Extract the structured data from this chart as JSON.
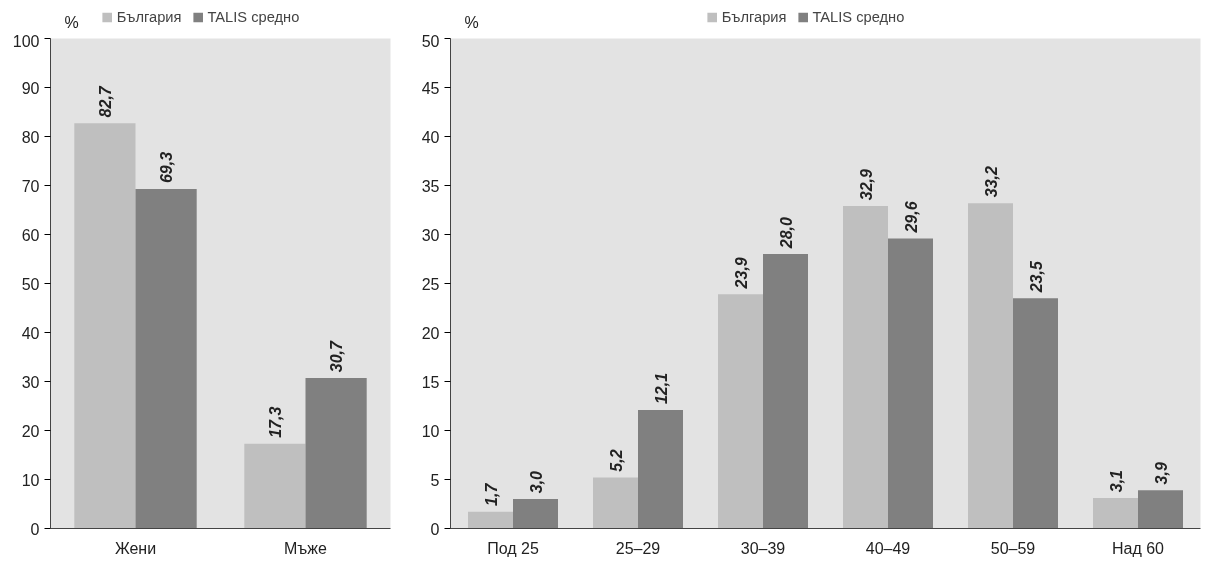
{
  "chart_data": [
    {
      "type": "bar",
      "ylabel": "%",
      "categories": [
        "Жени",
        "Мъже"
      ],
      "ylim": [
        0,
        100
      ],
      "yticks": [
        0,
        10,
        20,
        30,
        40,
        50,
        60,
        70,
        80,
        90,
        100
      ],
      "grid": false,
      "legend": "top",
      "series": [
        {
          "name": "България",
          "color": "#bfbfbf",
          "values": [
            82.7,
            17.3
          ],
          "value_labels": [
            "82,7",
            "17,3"
          ]
        },
        {
          "name": "TALIS средно",
          "color": "#808080",
          "values": [
            69.3,
            30.7
          ],
          "value_labels": [
            "69,3",
            "30,7"
          ]
        }
      ]
    },
    {
      "type": "bar",
      "ylabel": "%",
      "categories": [
        "Под 25",
        "25–29",
        "30–39",
        "40–49",
        "50–59",
        "Над 60"
      ],
      "ylim": [
        0,
        50
      ],
      "yticks": [
        0,
        5,
        10,
        15,
        20,
        25,
        30,
        35,
        40,
        45,
        50
      ],
      "grid": false,
      "legend": "top",
      "series": [
        {
          "name": "България",
          "color": "#bfbfbf",
          "values": [
            1.7,
            5.2,
            23.9,
            32.9,
            33.2,
            3.1
          ],
          "value_labels": [
            "1,7",
            "5,2",
            "23,9",
            "32,9",
            "33,2",
            "3,1"
          ]
        },
        {
          "name": "TALIS средно",
          "color": "#808080",
          "values": [
            3.0,
            12.1,
            28.0,
            29.6,
            23.5,
            3.9
          ],
          "value_labels": [
            "3,0",
            "12,1",
            "28,0",
            "29,6",
            "23,5",
            "3,9"
          ]
        }
      ]
    }
  ]
}
